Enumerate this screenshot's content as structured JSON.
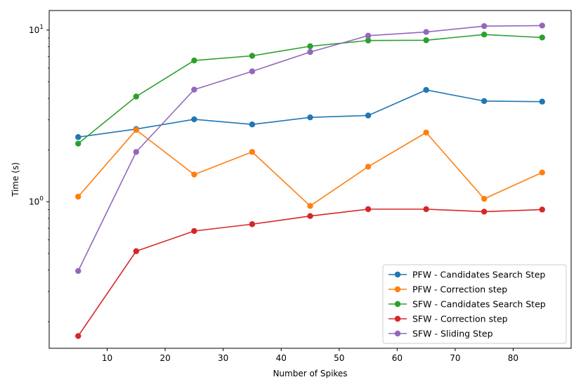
{
  "chart_data": {
    "type": "line",
    "title": "",
    "xlabel": "Number of Spikes",
    "ylabel": "Time (s)",
    "yscale": "log",
    "xlim": [
      0.0,
      90.0
    ],
    "ylim": [
      0.14,
      13.0
    ],
    "xticks": [
      10,
      20,
      30,
      40,
      50,
      60,
      70,
      80
    ],
    "yticks_major": [
      {
        "value": 1,
        "base": "10",
        "exp": "0"
      },
      {
        "value": 10,
        "base": "10",
        "exp": "1"
      }
    ],
    "grid": false,
    "legend_position": "lower-right",
    "x": [
      5,
      15,
      25,
      35,
      45,
      55,
      65,
      75,
      85
    ],
    "series": [
      {
        "name": "PFW - Candidates Search Step",
        "color": "#1f77b4",
        "values": [
          2.38,
          2.65,
          3.02,
          2.82,
          3.1,
          3.18,
          4.48,
          3.86,
          3.83
        ]
      },
      {
        "name": "PFW - Correction step",
        "color": "#ff7f0e",
        "values": [
          1.07,
          2.62,
          1.44,
          1.95,
          0.945,
          1.6,
          2.53,
          1.04,
          1.48
        ]
      },
      {
        "name": "SFW - Candidates Search Step",
        "color": "#2ca02c",
        "values": [
          2.18,
          4.1,
          6.65,
          7.08,
          8.05,
          8.7,
          8.73,
          9.42,
          9.05
        ]
      },
      {
        "name": "SFW - Correction step",
        "color": "#d62728",
        "values": [
          0.165,
          0.515,
          0.675,
          0.74,
          0.825,
          0.905,
          0.905,
          0.875,
          0.9
        ]
      },
      {
        "name": "SFW - Sliding Step",
        "color": "#9467bd",
        "values": [
          0.395,
          1.95,
          4.5,
          5.75,
          7.45,
          9.28,
          9.75,
          10.55,
          10.62
        ]
      }
    ]
  }
}
